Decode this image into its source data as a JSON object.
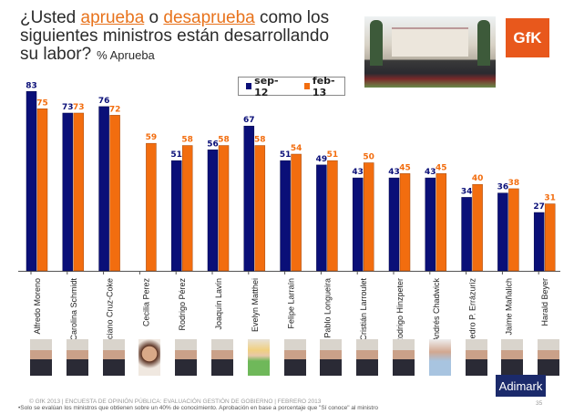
{
  "title": {
    "part1": "¿Usted ",
    "approve": "aprueba",
    "part2": " o ",
    "disapprove": "desaprueba",
    "part3": " como los siguientes ministros están desarrollando su labor?",
    "subtitle": "% Aprueba"
  },
  "logo": "GfK",
  "brand": "Adimark",
  "footer": {
    "line1": "© GfK 2013 | ENCUESTA DE OPINIÓN PÚBLICA: EVALUACIÓN GESTIÓN DE GOBIERNO | FEBRERO 2013",
    "line2": "•Solo se evalúan los ministros que obtienen sobre un 40% de conocimiento. Aprobación en base a porcentaje que \"Sí conoce\" al ministro",
    "page": "35"
  },
  "colors": {
    "sep12": "#0a0f78",
    "feb13": "#f26d0f"
  },
  "chart_data": {
    "type": "bar",
    "title": "¿Usted aprueba o desaprueba como los siguientes ministros están desarrollando su labor?",
    "ylabel": "% Aprueba",
    "ylim": [
      0,
      100
    ],
    "grid": false,
    "legend_position": "top-center",
    "categories": [
      "Alfredo Moreno",
      "Carolina Schmidt",
      "Luciano Cruz-Coke",
      "Cecilia Perez",
      "Rodrigo Pérez",
      "Joaquín Lavín",
      "Evelyn Matthei",
      "Felipe Larraín",
      "Pablo Longueira",
      "Cristián Larroulet",
      "Rodrigo Hinzpeter",
      "Andrés Chadwick",
      "Pedro P. Errázuriz",
      "Jaime Mañalich",
      "Harald Beyer"
    ],
    "series": [
      {
        "name": "sep-12",
        "values": [
          83,
          73,
          76,
          null,
          51,
          56,
          67,
          51,
          49,
          43,
          43,
          43,
          34,
          36,
          27
        ]
      },
      {
        "name": "feb-13",
        "values": [
          75,
          73,
          72,
          59,
          58,
          58,
          58,
          54,
          51,
          50,
          45,
          45,
          40,
          38,
          31
        ]
      }
    ]
  }
}
